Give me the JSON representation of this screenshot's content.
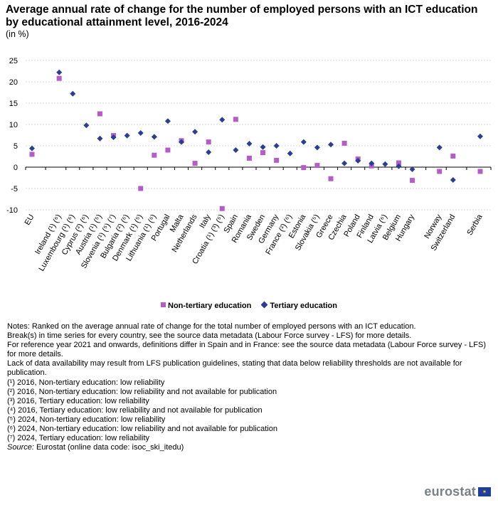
{
  "title": "Average annual rate of change for the number of employed persons with an ICT education by educational attainment level, 2016-2024",
  "subtitle": "(in %)",
  "legend": {
    "non_tertiary": "Non-tertiary education",
    "tertiary": "Tertiary education"
  },
  "colors": {
    "non_tertiary": "#b45cc8",
    "tertiary": "#2a3e96",
    "grid": "#d9d9d9",
    "axis": "#000000"
  },
  "chart_data": {
    "type": "scatter",
    "title": "Average annual rate of change for the number of employed persons with an ICT education by educational attainment level, 2016-2024",
    "ylim": [
      -10,
      25
    ],
    "yticks": [
      -10,
      -5,
      0,
      5,
      10,
      15,
      20,
      25
    ],
    "grid": true,
    "legend_position": "bottom",
    "categories": [
      "EU",
      "Ireland (¹) (⁶)",
      "Luxembourg (¹) (⁶)",
      "Cyprus (²) (⁶)",
      "Austria (¹) (⁵)",
      "Slovenia (¹) (⁵) (⁷)",
      "Bulgaria (²) (⁶)",
      "Denmark (¹) (⁵)",
      "Lithuania (¹) (⁶)",
      "Portugal",
      "Malta",
      "Netherlands",
      "Italy",
      "Croatia (¹) (³) (⁵)",
      "Spain",
      "Romania",
      "Sweden",
      "Germany",
      "France (²) (⁶)",
      "Estonia",
      "Slovakia (⁵)",
      "Greece",
      "Czechia",
      "Poland",
      "Finland",
      "Latvia (⁶)",
      "Belgium",
      "Hungary",
      "Norway",
      "Switzerland",
      "Serbia"
    ],
    "gap_after": [
      "EU",
      "Hungary",
      "Switzerland"
    ],
    "series": [
      {
        "name": "Non-tertiary education",
        "marker": "square",
        "values": [
          3.0,
          20.8,
          null,
          null,
          12.5,
          7.4,
          null,
          -5.0,
          2.8,
          4.0,
          6.2,
          0.9,
          5.9,
          -9.7,
          11.2,
          2.1,
          3.4,
          1.6,
          null,
          -0.1,
          0.4,
          -2.7,
          5.6,
          1.9,
          0.3,
          null,
          1.0,
          -3.1,
          -1.0,
          2.6,
          -1.0
        ]
      },
      {
        "name": "Tertiary education",
        "marker": "diamond",
        "values": [
          4.4,
          22.2,
          17.2,
          9.8,
          6.7,
          7.0,
          7.4,
          8.0,
          7.1,
          10.8,
          5.9,
          8.3,
          3.5,
          11.1,
          4.0,
          5.5,
          4.7,
          5.0,
          3.2,
          5.9,
          4.6,
          5.3,
          0.9,
          1.5,
          0.9,
          0.7,
          0.2,
          -0.5,
          4.6,
          -3.0,
          7.2
        ]
      }
    ]
  },
  "notes": [
    "Notes: Ranked on the average annual rate of change for the total number of employed persons with an ICT education.",
    "Break(s) in time series for every country, see the source data metadata (Labour Force survey - LFS) for more details.",
    "For reference year 2021 and onwards, definitions differ in Spain and in France: see the source data metadata (Labour Force survey - LFS) for more details.",
    "Lack of data availability may result from LFS publication guidelines, stating that data below reliability thresholds are not available for publication.",
    "(¹) 2016, Non-tertiary education: low reliability",
    "(²) 2016, Non-tertiary education: low reliability and not available for publication",
    "(³) 2016, Tertiary education: low reliability",
    "(⁴) 2016, Tertiary education: low reliability and not available for publication",
    "(⁵) 2024, Non-tertiary education: low reliability",
    "(⁶) 2024, Non-tertiary education: low reliability and not available for publication",
    "(⁷) 2024, Tertiary education: low reliability"
  ],
  "source": {
    "label": "Source:",
    "text": " Eurostat (online data code: isoc_ski_itedu)"
  },
  "logo": {
    "text": "eurostat",
    "flag_icon": "eu-flag-icon"
  }
}
